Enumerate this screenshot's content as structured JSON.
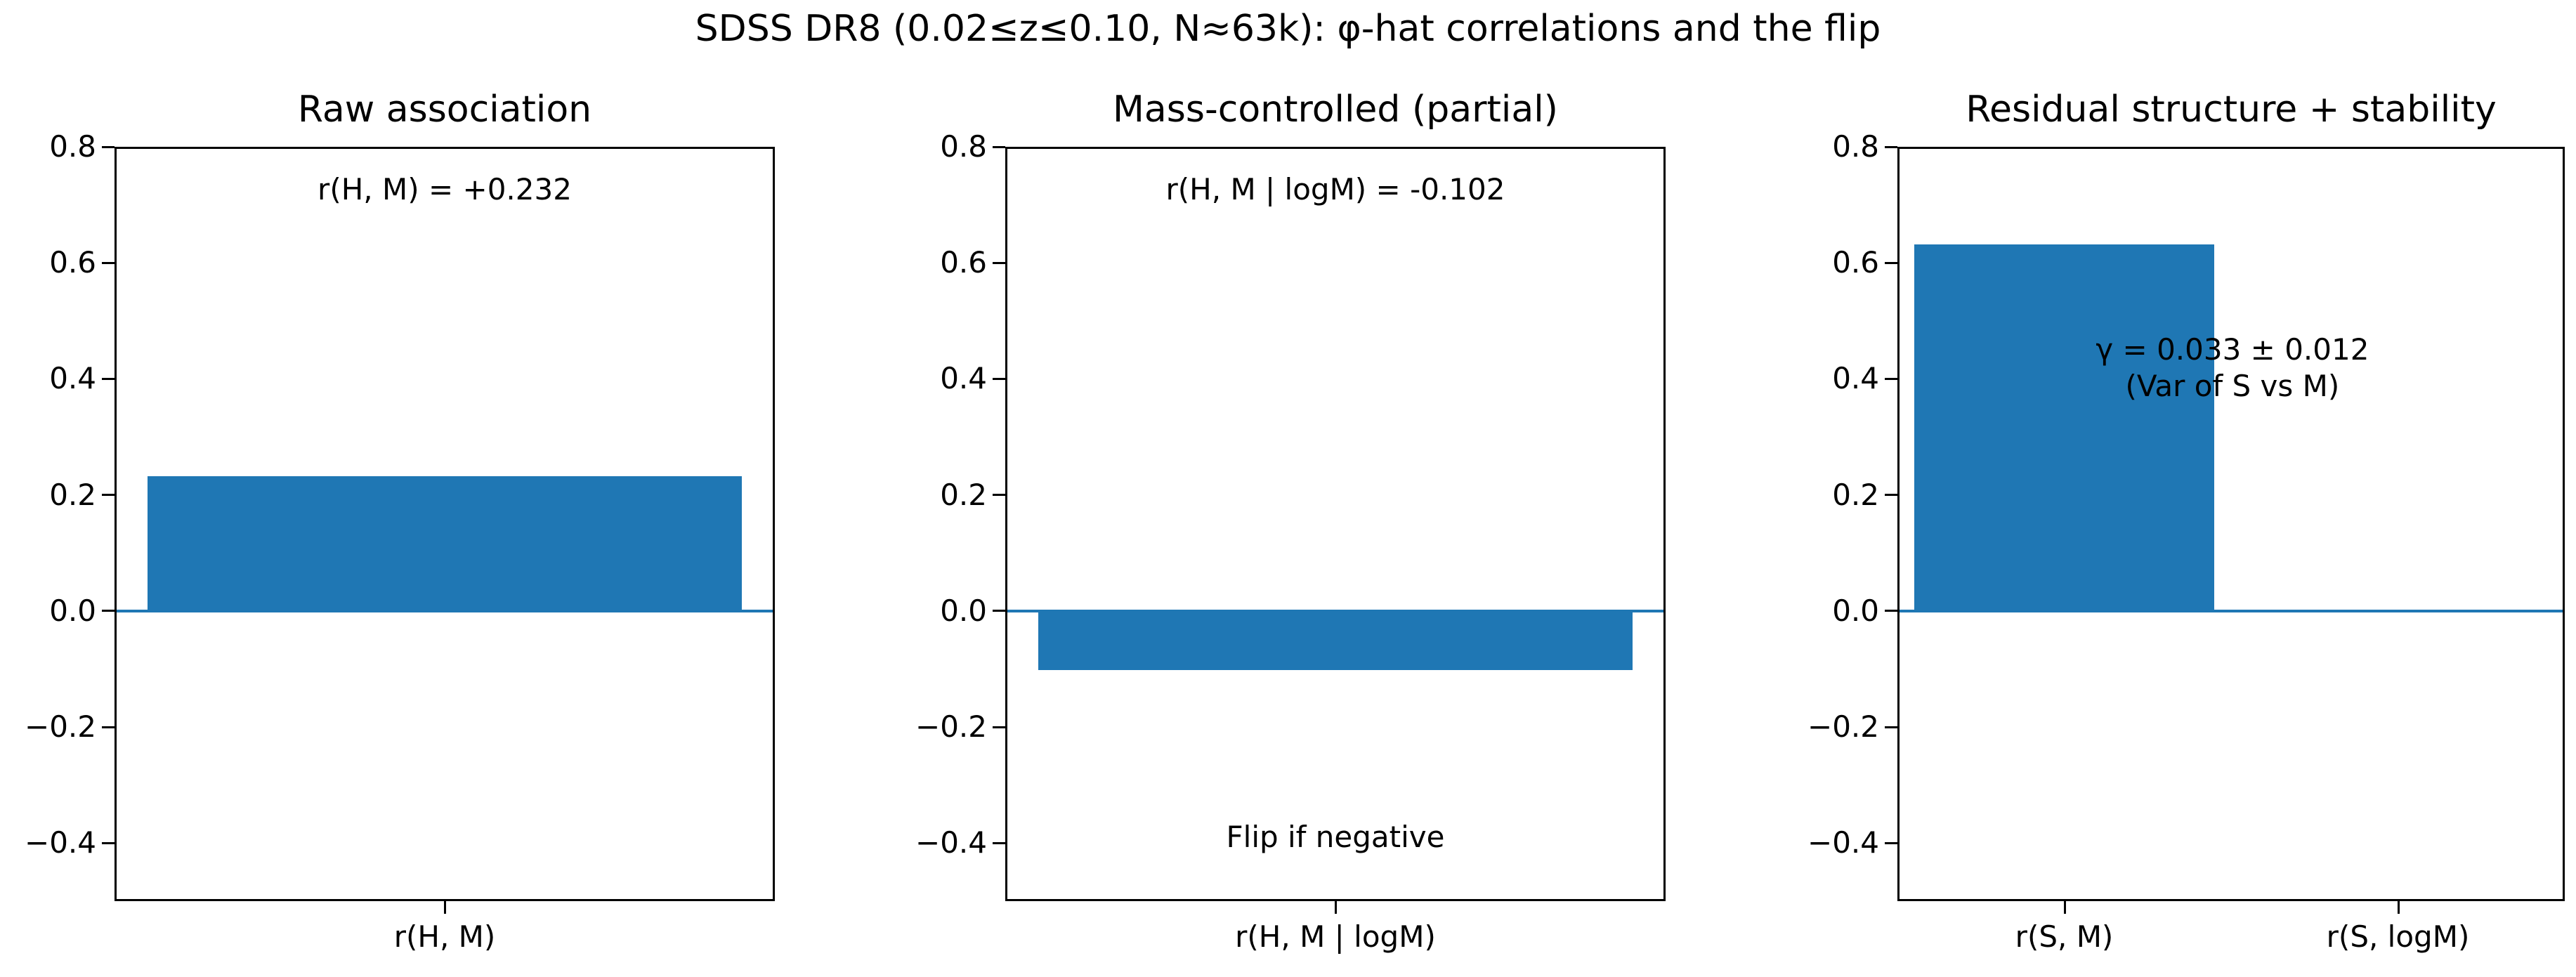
{
  "figure": {
    "suptitle": "SDSS DR8 (0.02≤z≤0.10, N≈63k): φ-hat correlations and the flip",
    "bar_color": "#1f77b4",
    "ytick_labels": [
      "0.8",
      "0.6",
      "0.4",
      "0.2",
      "0.0",
      "−0.2",
      "−0.4"
    ]
  },
  "panels": [
    {
      "title": "Raw association",
      "annotation": "r(H, M) = +0.232",
      "xtick_labels": [
        "r(H, M)"
      ]
    },
    {
      "title": "Mass-controlled (partial)",
      "annotation": "r(H, M | logM) = -0.102",
      "annotation_bottom": "Flip if negative",
      "xtick_labels": [
        "r(H, M | logM)"
      ]
    },
    {
      "title": "Residual structure + stability",
      "annotation_line1": "γ = 0.033 ± 0.012",
      "annotation_line2": "(Var of S vs M)",
      "xtick_labels": [
        "r(S, M)",
        "r(S, logM)"
      ]
    }
  ],
  "chart_data": [
    {
      "type": "bar",
      "title": "Raw association",
      "categories": [
        "r(H, M)"
      ],
      "values": [
        0.232
      ],
      "xlabel": "",
      "ylabel": "",
      "ylim": [
        -0.5,
        0.8
      ],
      "yticks": [
        -0.4,
        -0.2,
        0.0,
        0.2,
        0.4,
        0.6,
        0.8
      ],
      "annotations": [
        "r(H, M) = +0.232"
      ],
      "hline": 0.0,
      "grid": false
    },
    {
      "type": "bar",
      "title": "Mass-controlled (partial)",
      "categories": [
        "r(H, M | logM)"
      ],
      "values": [
        -0.102
      ],
      "xlabel": "",
      "ylabel": "",
      "ylim": [
        -0.5,
        0.8
      ],
      "yticks": [
        -0.4,
        -0.2,
        0.0,
        0.2,
        0.4,
        0.6,
        0.8
      ],
      "annotations": [
        "r(H, M | logM) = -0.102",
        "Flip if negative"
      ],
      "hline": 0.0,
      "grid": false
    },
    {
      "type": "bar",
      "title": "Residual structure + stability",
      "categories": [
        "r(S, M)",
        "r(S, logM)"
      ],
      "values": [
        0.632,
        0.0
      ],
      "xlabel": "",
      "ylabel": "",
      "ylim": [
        -0.5,
        0.8
      ],
      "yticks": [
        -0.4,
        -0.2,
        0.0,
        0.2,
        0.4,
        0.6,
        0.8
      ],
      "annotations": [
        "γ = 0.033 ± 0.012",
        "(Var of S vs M)"
      ],
      "hline": 0.0,
      "grid": false
    }
  ],
  "title": "SDSS DR8 (0.02≤z≤0.10, N≈63k): φ-hat correlations and the flip"
}
